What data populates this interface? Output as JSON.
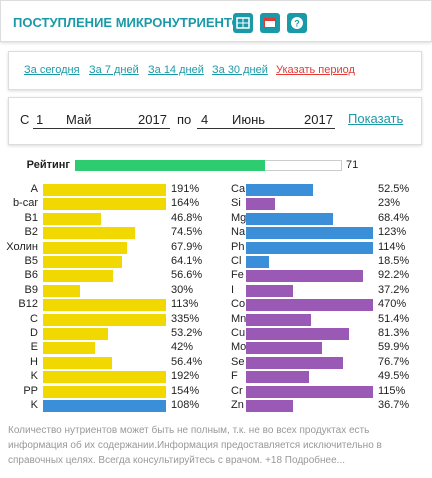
{
  "header": {
    "title": "ПОСТУПЛЕНИЕ МИКРОНУТРИЕНТОВ"
  },
  "periods": [
    "За сегодня",
    "За 7 дней",
    "За 14 дней",
    "За 30 дней",
    "Указать период"
  ],
  "range": {
    "from_label": "С",
    "from_day": "1",
    "from_month": "Май",
    "from_year": "2017",
    "to_label": "по",
    "to_day": "4",
    "to_month": "Июнь",
    "to_year": "2017",
    "button": "Показать"
  },
  "rating": {
    "label": "Рейтинг",
    "value": 71,
    "color": "#2ecc71"
  },
  "left": [
    {
      "name": "A",
      "value": 191,
      "label": "191%",
      "color": "#f0d800"
    },
    {
      "name": "b-car",
      "value": 164,
      "label": "164%",
      "color": "#f0d800"
    },
    {
      "name": "B1",
      "value": 46.8,
      "label": "46.8%",
      "color": "#f0d800"
    },
    {
      "name": "B2",
      "value": 74.5,
      "label": "74.5%",
      "color": "#f0d800"
    },
    {
      "name": "Холин",
      "value": 67.9,
      "label": "67.9%",
      "color": "#f0d800"
    },
    {
      "name": "B5",
      "value": 64.1,
      "label": "64.1%",
      "color": "#f0d800"
    },
    {
      "name": "B6",
      "value": 56.6,
      "label": "56.6%",
      "color": "#f0d800"
    },
    {
      "name": "B9",
      "value": 30,
      "label": "30%",
      "color": "#f0d800"
    },
    {
      "name": "B12",
      "value": 113,
      "label": "113%",
      "color": "#f0d800"
    },
    {
      "name": "C",
      "value": 335,
      "label": "335%",
      "color": "#f0d800"
    },
    {
      "name": "D",
      "value": 53.2,
      "label": "53.2%",
      "color": "#f0d800"
    },
    {
      "name": "E",
      "value": 42,
      "label": "42%",
      "color": "#f0d800"
    },
    {
      "name": "H",
      "value": 56.4,
      "label": "56.4%",
      "color": "#f0d800"
    },
    {
      "name": "K",
      "value": 192,
      "label": "192%",
      "color": "#f0d800"
    },
    {
      "name": "PP",
      "value": 154,
      "label": "154%",
      "color": "#f0d800"
    },
    {
      "name": "K",
      "value": 108,
      "label": "108%",
      "color": "#3a8fd8"
    }
  ],
  "right": [
    {
      "name": "Ca",
      "value": 52.5,
      "label": "52.5%",
      "color": "#3a8fd8"
    },
    {
      "name": "Si",
      "value": 23,
      "label": "23%",
      "color": "#9b59b6"
    },
    {
      "name": "Mg",
      "value": 68.4,
      "label": "68.4%",
      "color": "#3a8fd8"
    },
    {
      "name": "Na",
      "value": 123,
      "label": "123%",
      "color": "#3a8fd8"
    },
    {
      "name": "Ph",
      "value": 114,
      "label": "114%",
      "color": "#3a8fd8"
    },
    {
      "name": "Cl",
      "value": 18.5,
      "label": "18.5%",
      "color": "#3a8fd8"
    },
    {
      "name": "Fe",
      "value": 92.2,
      "label": "92.2%",
      "color": "#9b59b6"
    },
    {
      "name": "I",
      "value": 37.2,
      "label": "37.2%",
      "color": "#9b59b6"
    },
    {
      "name": "Co",
      "value": 470,
      "label": "470%",
      "color": "#9b59b6"
    },
    {
      "name": "Mn",
      "value": 51.4,
      "label": "51.4%",
      "color": "#9b59b6"
    },
    {
      "name": "Cu",
      "value": 81.3,
      "label": "81.3%",
      "color": "#9b59b6"
    },
    {
      "name": "Mo",
      "value": 59.9,
      "label": "59.9%",
      "color": "#9b59b6"
    },
    {
      "name": "Se",
      "value": 76.7,
      "label": "76.7%",
      "color": "#9b59b6"
    },
    {
      "name": "F",
      "value": 49.5,
      "label": "49.5%",
      "color": "#9b59b6"
    },
    {
      "name": "Cr",
      "value": 115,
      "label": "115%",
      "color": "#9b59b6"
    },
    {
      "name": "Zn",
      "value": 36.7,
      "label": "36.7%",
      "color": "#9b59b6"
    }
  ],
  "footer": "Количество нутриентов может быть не полным, т.к. не во всех продуктах есть информация об их содержании.Информация предоставляется исключительно в справочных целях. Всегда консультируйтесь с врачом. +18 Подробнее..."
}
